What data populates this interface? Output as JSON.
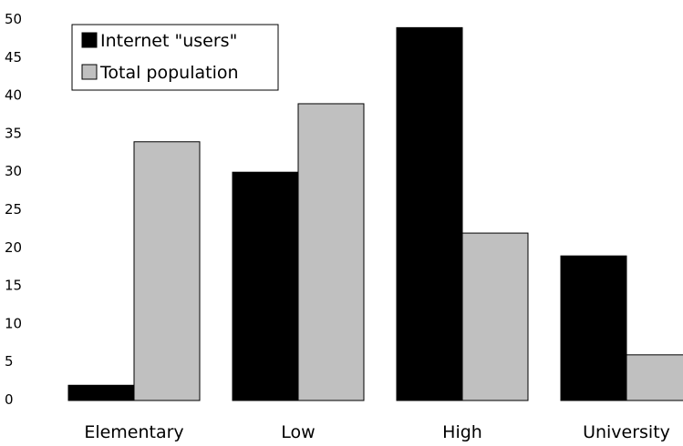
{
  "chart_data": {
    "type": "bar",
    "categories": [
      "Elementary",
      "Low",
      "High",
      "University"
    ],
    "series": [
      {
        "name": "Internet \"users\"",
        "values": [
          2,
          30,
          49,
          19
        ],
        "color": "#000000"
      },
      {
        "name": "Total population",
        "values": [
          34,
          39,
          22,
          6
        ],
        "color": "#c0c0c0"
      }
    ],
    "title": "",
    "xlabel": "",
    "ylabel": "",
    "ylim": [
      0,
      50
    ],
    "yticks": [
      0,
      5,
      10,
      15,
      20,
      25,
      30,
      35,
      40,
      45,
      50
    ],
    "grid": false,
    "legend": "top-left"
  }
}
